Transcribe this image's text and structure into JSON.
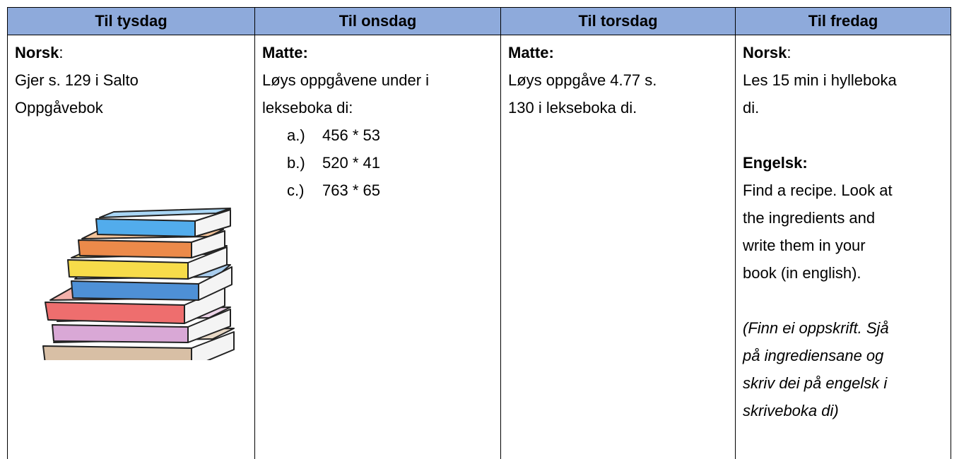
{
  "table": {
    "header": [
      "Til tysdag",
      "Til onsdag",
      "Til torsdag",
      "Til fredag"
    ],
    "columns": [
      {
        "subject": "Norsk",
        "subject_suffix": ":",
        "lines": [
          "Gjer s. 129 i Salto",
          "Oppgåvebok"
        ]
      },
      {
        "subject": "Matte:",
        "lines": [
          "Løys oppgåvene under i",
          "lekseboka di:"
        ],
        "list": [
          {
            "marker": "a.)",
            "text": "456 * 53"
          },
          {
            "marker": "b.)",
            "text": "520 * 41"
          },
          {
            "marker": "c.)",
            "text": "763 * 65"
          }
        ]
      },
      {
        "subject": "Matte:",
        "lines": [
          "Løys oppgåve 4.77 s.",
          "130 i lekseboka di."
        ]
      },
      {
        "subject": "Norsk",
        "subject_suffix": ":",
        "lines": [
          "Les 15 min i hylleboka",
          "di."
        ],
        "subject2": "Engelsk:",
        "lines2": [
          "Find a recipe. Look at",
          "the ingredients and",
          "write them in your",
          "book (in english)."
        ],
        "lines3": [
          "(Finn ei oppskrift. Sjå",
          "på ingrediensane og",
          "skriv dei på engelsk i",
          "skriveboka di)"
        ]
      }
    ]
  }
}
